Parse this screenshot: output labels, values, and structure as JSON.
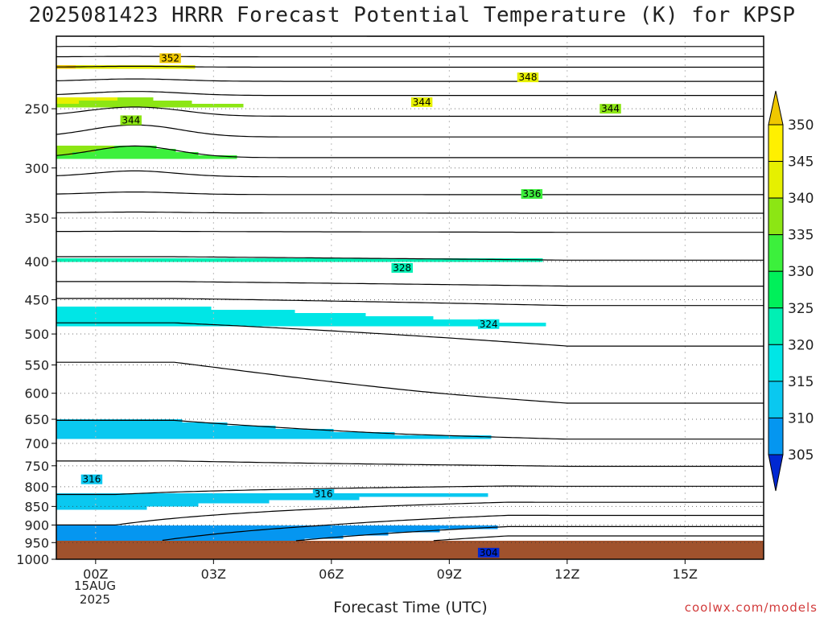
{
  "title": "2025081423 HRRR Forecast Potential Temperature (K) for KPSP",
  "credit": "coolwx.com/models",
  "chart_data": {
    "type": "time-height contour",
    "title": "2025081423 HRRR Forecast Potential Temperature (K) for KPSP",
    "xlabel": "Forecast Time (UTC)",
    "ylabel": "",
    "x_ticks": [
      {
        "hour": 1,
        "label": "00Z"
      },
      {
        "hour": 4,
        "label": "03Z"
      },
      {
        "hour": 7,
        "label": "06Z"
      },
      {
        "hour": 10,
        "label": "09Z"
      },
      {
        "hour": 13,
        "label": "12Z"
      },
      {
        "hour": 16,
        "label": "15Z"
      }
    ],
    "x_range_hours": [
      0,
      18
    ],
    "date_label": [
      "15AUG",
      "2025"
    ],
    "y_ticks": [
      250,
      300,
      350,
      400,
      450,
      500,
      550,
      600,
      650,
      700,
      750,
      800,
      850,
      900,
      950,
      1000
    ],
    "y_range_hpa": [
      200,
      1000
    ],
    "y_scale": "log-pressure",
    "colorbar": {
      "levels": [
        305,
        310,
        315,
        320,
        325,
        330,
        335,
        340,
        345,
        350
      ],
      "colors": [
        "#0050f0",
        "#0596f0",
        "#0ac8f0",
        "#00e6e6",
        "#00f0b4",
        "#00f05a",
        "#3cf03c",
        "#8ce614",
        "#e6f000",
        "#fff000"
      ],
      "below_color": "#0028d2",
      "above_color": "#f0c800"
    },
    "contour_interval": 2,
    "contour_labels": [
      {
        "value": 352,
        "hour": 2.9,
        "p": 214
      },
      {
        "value": 348,
        "hour": 12.0,
        "p": 227
      },
      {
        "value": 344,
        "hour": 9.3,
        "p": 245
      },
      {
        "value": 344,
        "hour": 14.1,
        "p": 250
      },
      {
        "value": 344,
        "hour": 1.9,
        "p": 259
      },
      {
        "value": 336,
        "hour": 12.1,
        "p": 325
      },
      {
        "value": 328,
        "hour": 8.8,
        "p": 408
      },
      {
        "value": 324,
        "hour": 11.0,
        "p": 485
      },
      {
        "value": 316,
        "hour": 0.9,
        "p": 782
      },
      {
        "value": 316,
        "hour": 6.8,
        "p": 818
      },
      {
        "value": 304,
        "hour": 11.0,
        "p": 980
      }
    ],
    "ground_color": "#a0522d"
  }
}
